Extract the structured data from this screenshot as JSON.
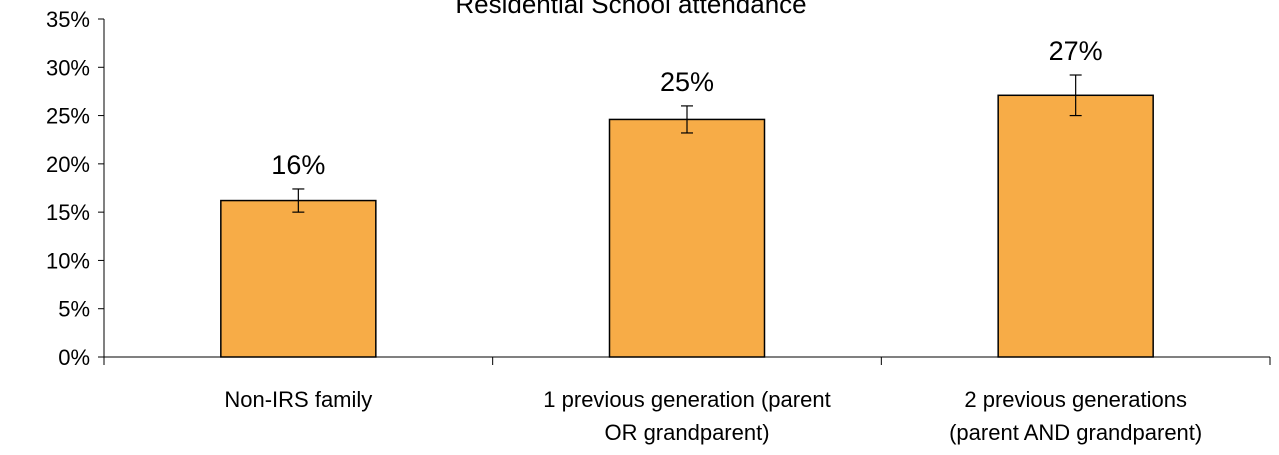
{
  "chart_data": {
    "type": "bar",
    "title": "Residential School attendance",
    "categories": [
      [
        "Non-IRS family"
      ],
      [
        "1 previous generation (parent",
        "OR grandparent)"
      ],
      [
        "2 previous generations",
        "(parent AND grandparent)"
      ]
    ],
    "values": [
      16.2,
      24.6,
      27.1
    ],
    "data_labels": [
      "16%",
      "25%",
      "27%"
    ],
    "error_bars": [
      {
        "low": 15.0,
        "high": 17.4
      },
      {
        "low": 23.2,
        "high": 26.0
      },
      {
        "low": 25.0,
        "high": 29.2
      }
    ],
    "ylim": [
      0,
      35
    ],
    "yticks": [
      0,
      5,
      10,
      15,
      20,
      25,
      30,
      35
    ],
    "ytick_labels": [
      "0%",
      "5%",
      "10%",
      "15%",
      "20%",
      "25%",
      "30%",
      "35%"
    ],
    "xlabel": "",
    "ylabel": "",
    "grid": false,
    "legend": "none",
    "colors": {
      "bar_fill": "#F7AC47",
      "bar_stroke": "#000000",
      "axis": "#000000"
    }
  }
}
